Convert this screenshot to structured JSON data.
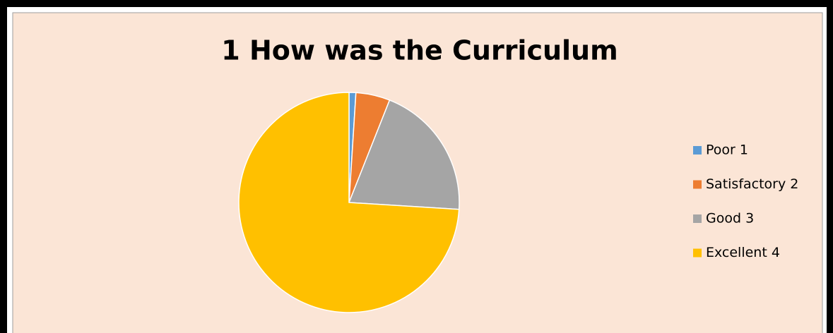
{
  "chart_data": {
    "type": "pie",
    "title": "1 How was the Curriculum",
    "categories": [
      "Poor 1",
      "Satisfactory 2",
      "Good 3",
      "Excellent 4"
    ],
    "values": [
      1,
      5,
      20,
      74
    ],
    "colors": [
      "#5b9bd5",
      "#ed7d31",
      "#a5a5a5",
      "#ffc000"
    ],
    "legend": "right"
  }
}
